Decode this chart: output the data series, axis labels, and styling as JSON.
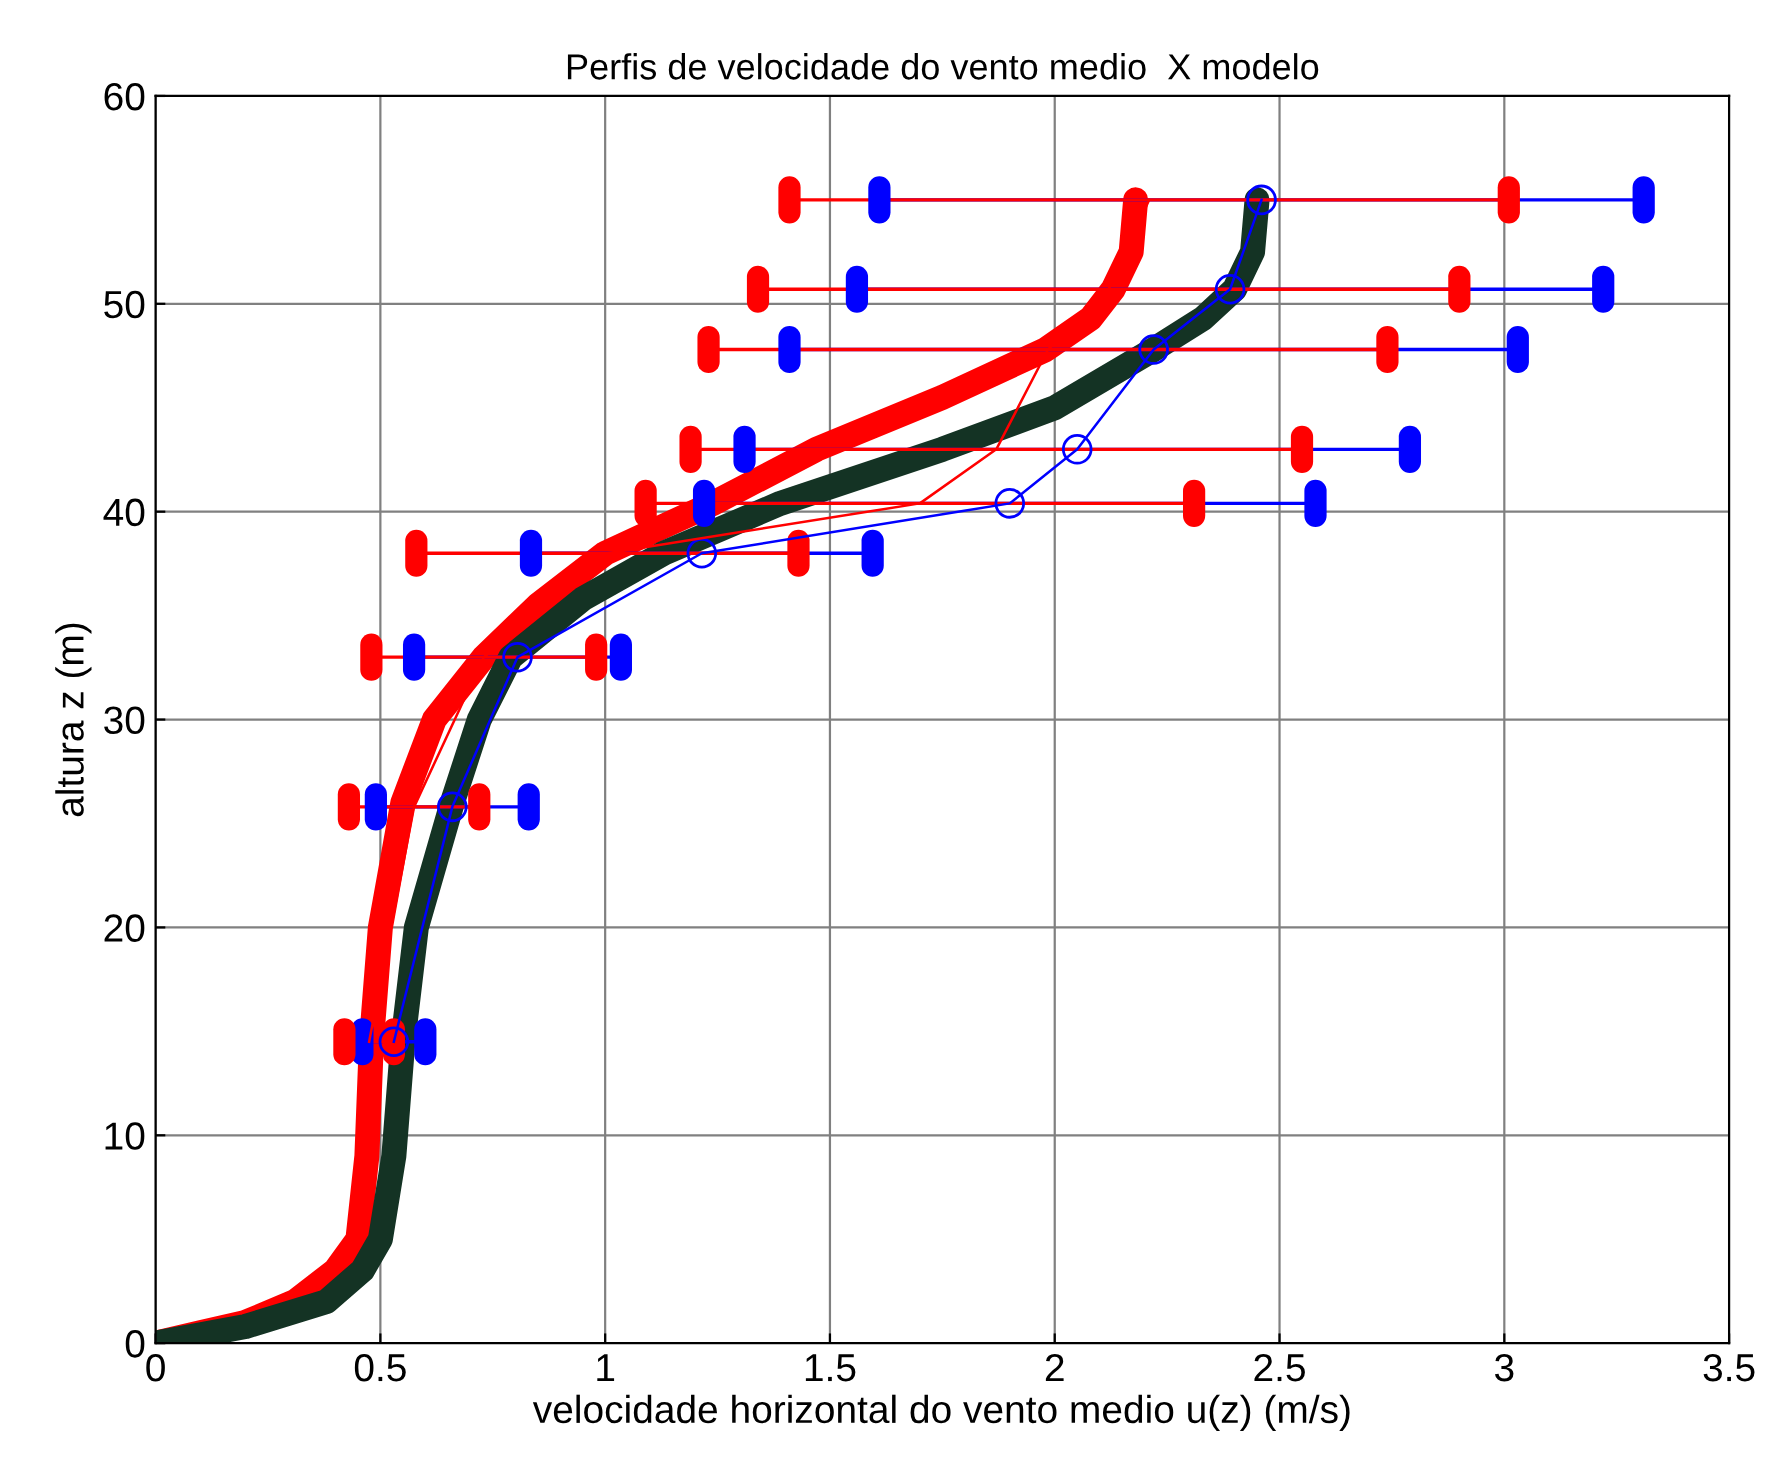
{
  "chart_data": {
    "type": "line",
    "title": "Perfis de velocidade do vento medio  X modelo",
    "xlabel": "velocidade horizontal do vento medio u(z) (m/s)",
    "ylabel": "altura z (m)",
    "xlim": [
      0,
      3.5
    ],
    "xticks": [
      0,
      0.5,
      1,
      1.5,
      2,
      2.5,
      3,
      3.5
    ],
    "ylim": [
      0,
      60
    ],
    "yticks": [
      0,
      10,
      20,
      30,
      40,
      50,
      60
    ],
    "grid": true,
    "legend": false,
    "series": [
      {
        "color": "#ff0000",
        "marker": "none",
        "x": [
          0,
          0.1,
          0.2,
          0.31,
          0.4,
          0.45,
          0.47,
          0.48,
          0.5,
          0.55,
          0.62,
          0.73,
          0.85,
          1.0,
          1.24,
          1.47,
          1.75,
          1.98,
          2.08,
          2.13,
          2.17,
          2.18
        ],
        "values": [
          0,
          0.5,
          1,
          2,
          3.5,
          5,
          9,
          14.5,
          20,
          26,
          30,
          33,
          35.5,
          38,
          40.4,
          43,
          45.5,
          47.8,
          49.3,
          50.7,
          52.5,
          55
        ]
      },
      {
        "color": "#143324",
        "marker": "none",
        "x": [
          0,
          0.2,
          0.38,
          0.46,
          0.5,
          0.53,
          0.55,
          0.58,
          0.66,
          0.72,
          0.79,
          0.95,
          1.13,
          1.39,
          1.75,
          2.0,
          2.22,
          2.33,
          2.4,
          2.44,
          2.45
        ],
        "values": [
          0,
          0.8,
          2,
          3.5,
          5,
          9,
          14.5,
          20,
          26,
          30,
          33,
          35.8,
          38,
          40.4,
          43,
          45,
          47.8,
          49.3,
          50.7,
          52.5,
          55
        ]
      },
      {
        "color": "#0000ff",
        "marker": "circle",
        "x": [
          0.53,
          0.66,
          0.805,
          1.215,
          1.9,
          2.05,
          2.22,
          2.39,
          2.46
        ],
        "values": [
          14.5,
          25.8,
          33,
          38,
          40.4,
          43,
          47.8,
          50.7,
          55
        ],
        "xerrors": [
          0.07,
          0.17,
          0.23,
          0.38,
          0.68,
          0.74,
          0.81,
          0.83,
          0.85
        ]
      },
      {
        "color": "#ff0000",
        "marker": "none",
        "x": [
          0.475,
          0.575,
          0.73,
          1.005,
          1.7,
          1.87,
          1.985,
          2.12,
          2.21
        ],
        "values": [
          14.5,
          25.8,
          33,
          38,
          40.4,
          43,
          47.8,
          50.7,
          55
        ],
        "xerrors": [
          0.055,
          0.145,
          0.25,
          0.425,
          0.61,
          0.68,
          0.755,
          0.78,
          0.8
        ]
      }
    ]
  }
}
